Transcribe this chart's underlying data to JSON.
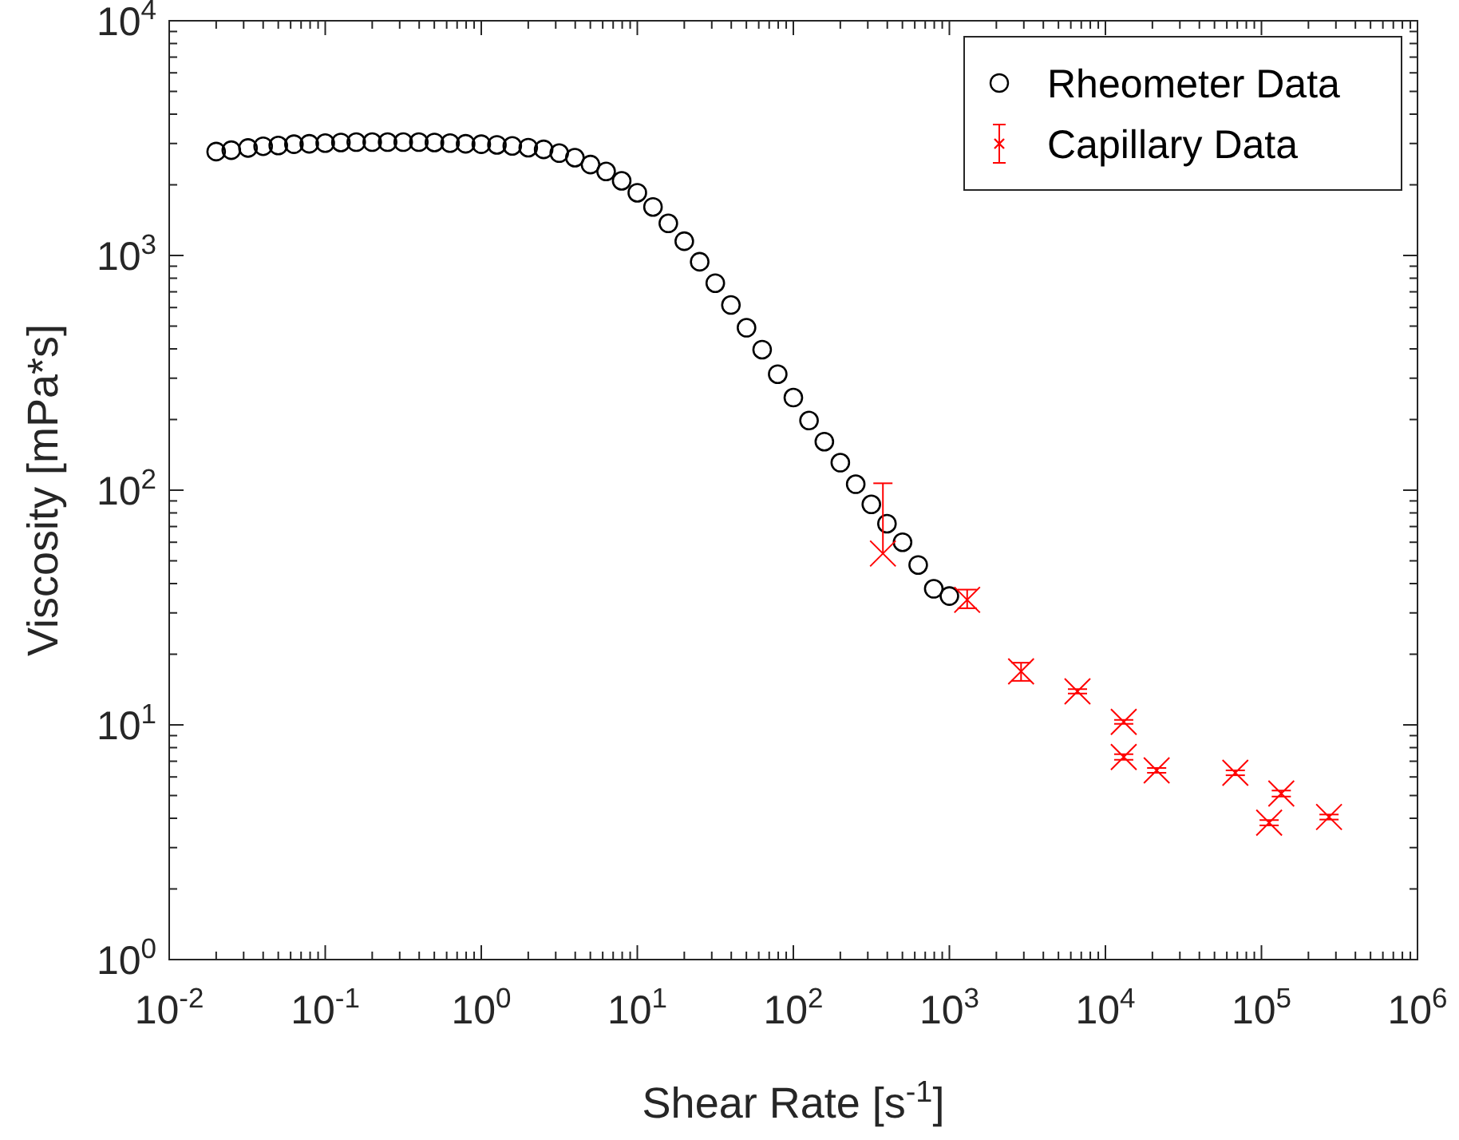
{
  "chart_data": {
    "type": "scatter",
    "xlabel": "Shear Rate [s$^{-1}$]",
    "ylabel": "Viscosity [mPa*s]",
    "log": "xy",
    "grid": false,
    "legend": "top right",
    "xlim": [
      0.01,
      1000000
    ],
    "ylim": [
      1,
      10000
    ],
    "xticks": [
      {
        "value": 0.01,
        "label": "10$^{-2}$"
      },
      {
        "value": 0.02,
        "label": null
      },
      {
        "value": 0.03,
        "label": null
      },
      {
        "value": 0.04,
        "label": null
      },
      {
        "value": 0.05,
        "label": null
      },
      {
        "value": 0.06,
        "label": null
      },
      {
        "value": 0.07,
        "label": null
      },
      {
        "value": 0.08,
        "label": null
      },
      {
        "value": 0.09,
        "label": null
      },
      {
        "value": 0.1,
        "label": "10$^{-1}$"
      },
      {
        "value": 0.2,
        "label": null
      },
      {
        "value": 0.3,
        "label": null
      },
      {
        "value": 0.4,
        "label": null
      },
      {
        "value": 0.5,
        "label": null
      },
      {
        "value": 0.6,
        "label": null
      },
      {
        "value": 0.7,
        "label": null
      },
      {
        "value": 0.8,
        "label": null
      },
      {
        "value": 0.9,
        "label": null
      },
      {
        "value": 1,
        "label": "10$^{0}$"
      },
      {
        "value": 2,
        "label": null
      },
      {
        "value": 3,
        "label": null
      },
      {
        "value": 4,
        "label": null
      },
      {
        "value": 5,
        "label": null
      },
      {
        "value": 6,
        "label": null
      },
      {
        "value": 7,
        "label": null
      },
      {
        "value": 8,
        "label": null
      },
      {
        "value": 9,
        "label": null
      },
      {
        "value": 10,
        "label": "10$^{1}$"
      },
      {
        "value": 20,
        "label": null
      },
      {
        "value": 30,
        "label": null
      },
      {
        "value": 40,
        "label": null
      },
      {
        "value": 50,
        "label": null
      },
      {
        "value": 60,
        "label": null
      },
      {
        "value": 70,
        "label": null
      },
      {
        "value": 80,
        "label": null
      },
      {
        "value": 90,
        "label": null
      },
      {
        "value": 100,
        "label": "10$^{2}$"
      },
      {
        "value": 200,
        "label": null
      },
      {
        "value": 300,
        "label": null
      },
      {
        "value": 400,
        "label": null
      },
      {
        "value": 500,
        "label": null
      },
      {
        "value": 600,
        "label": null
      },
      {
        "value": 700,
        "label": null
      },
      {
        "value": 800,
        "label": null
      },
      {
        "value": 900,
        "label": null
      },
      {
        "value": 1000,
        "label": "10$^{3}$"
      },
      {
        "value": 2000,
        "label": null
      },
      {
        "value": 3000,
        "label": null
      },
      {
        "value": 4000,
        "label": null
      },
      {
        "value": 5000,
        "label": null
      },
      {
        "value": 6000,
        "label": null
      },
      {
        "value": 7000,
        "label": null
      },
      {
        "value": 8000,
        "label": null
      },
      {
        "value": 9000,
        "label": null
      },
      {
        "value": 10000,
        "label": "10$^{4}$"
      },
      {
        "value": 20000,
        "label": null
      },
      {
        "value": 30000,
        "label": null
      },
      {
        "value": 40000,
        "label": null
      },
      {
        "value": 50000,
        "label": null
      },
      {
        "value": 60000,
        "label": null
      },
      {
        "value": 70000,
        "label": null
      },
      {
        "value": 80000,
        "label": null
      },
      {
        "value": 90000,
        "label": null
      },
      {
        "value": 100000,
        "label": "10$^{5}$"
      },
      {
        "value": 200000,
        "label": null
      },
      {
        "value": 300000,
        "label": null
      },
      {
        "value": 400000,
        "label": null
      },
      {
        "value": 500000,
        "label": null
      },
      {
        "value": 600000,
        "label": null
      },
      {
        "value": 700000,
        "label": null
      },
      {
        "value": 800000,
        "label": null
      },
      {
        "value": 900000,
        "label": null
      },
      {
        "value": 1000000,
        "label": "10$^{6}$"
      }
    ],
    "yticks": [
      {
        "value": 1,
        "label": "10$^{0}$"
      },
      {
        "value": 2,
        "label": null
      },
      {
        "value": 3,
        "label": null
      },
      {
        "value": 4,
        "label": null
      },
      {
        "value": 5,
        "label": null
      },
      {
        "value": 6,
        "label": null
      },
      {
        "value": 7,
        "label": null
      },
      {
        "value": 8,
        "label": null
      },
      {
        "value": 9,
        "label": null
      },
      {
        "value": 10,
        "label": "10$^{1}$"
      },
      {
        "value": 20,
        "label": null
      },
      {
        "value": 30,
        "label": null
      },
      {
        "value": 40,
        "label": null
      },
      {
        "value": 50,
        "label": null
      },
      {
        "value": 60,
        "label": null
      },
      {
        "value": 70,
        "label": null
      },
      {
        "value": 80,
        "label": null
      },
      {
        "value": 90,
        "label": null
      },
      {
        "value": 100,
        "label": "10$^{2}$"
      },
      {
        "value": 200,
        "label": null
      },
      {
        "value": 300,
        "label": null
      },
      {
        "value": 400,
        "label": null
      },
      {
        "value": 500,
        "label": null
      },
      {
        "value": 600,
        "label": null
      },
      {
        "value": 700,
        "label": null
      },
      {
        "value": 800,
        "label": null
      },
      {
        "value": 900,
        "label": null
      },
      {
        "value": 1000,
        "label": "10$^{3}$"
      },
      {
        "value": 2000,
        "label": null
      },
      {
        "value": 3000,
        "label": null
      },
      {
        "value": 4000,
        "label": null
      },
      {
        "value": 5000,
        "label": null
      },
      {
        "value": 6000,
        "label": null
      },
      {
        "value": 7000,
        "label": null
      },
      {
        "value": 8000,
        "label": null
      },
      {
        "value": 9000,
        "label": null
      },
      {
        "value": 10000,
        "label": "10$^{4}$"
      }
    ],
    "series": [
      {
        "name": "Rheometer Data",
        "marker": "circle",
        "color": "#000000",
        "x": [
          0.02,
          0.025,
          0.032,
          0.04,
          0.05,
          0.063,
          0.079,
          0.1,
          0.126,
          0.158,
          0.2,
          0.251,
          0.316,
          0.398,
          0.501,
          0.631,
          0.794,
          1,
          1.26,
          1.58,
          2,
          2.51,
          3.16,
          3.98,
          5.01,
          6.31,
          7.94,
          10,
          12.6,
          15.8,
          20,
          25.1,
          31.6,
          39.8,
          50.1,
          63.1,
          79.4,
          100,
          126,
          158,
          200,
          251,
          316,
          398,
          501,
          631,
          794,
          1000
        ],
        "values": [
          2770,
          2810,
          2870,
          2920,
          2940,
          2980,
          2990,
          3010,
          3030,
          3040,
          3040,
          3040,
          3040,
          3040,
          3030,
          3010,
          2990,
          2980,
          2960,
          2930,
          2880,
          2830,
          2730,
          2610,
          2440,
          2280,
          2080,
          1850,
          1610,
          1370,
          1150,
          940,
          762,
          615,
          492,
          397,
          312,
          248,
          198,
          161,
          131,
          106,
          87,
          72,
          60,
          48,
          38,
          35.4
        ]
      },
      {
        "name": "Capillary Data",
        "marker": "cross",
        "color": "#ff0000",
        "x": [
          375,
          1300,
          2880,
          6620,
          13100,
          13100,
          21300,
          68000,
          134000,
          112000,
          271000
        ],
        "values": [
          53.7,
          34.1,
          16.9,
          13.9,
          10.3,
          7.3,
          6.4,
          6.25,
          5.1,
          3.83,
          4.05
        ],
        "errors": [
          [
            53.7,
            107
          ],
          [
            31.4,
            37.7
          ],
          [
            15.4,
            18.4
          ],
          [
            13.6,
            14.2
          ],
          [
            10.1,
            10.5
          ],
          [
            7.1,
            7.5
          ],
          [
            6.25,
            6.55
          ],
          [
            6.1,
            6.4
          ],
          [
            4.95,
            5.25
          ],
          [
            3.73,
            3.93
          ],
          [
            3.95,
            4.15
          ]
        ]
      }
    ]
  }
}
